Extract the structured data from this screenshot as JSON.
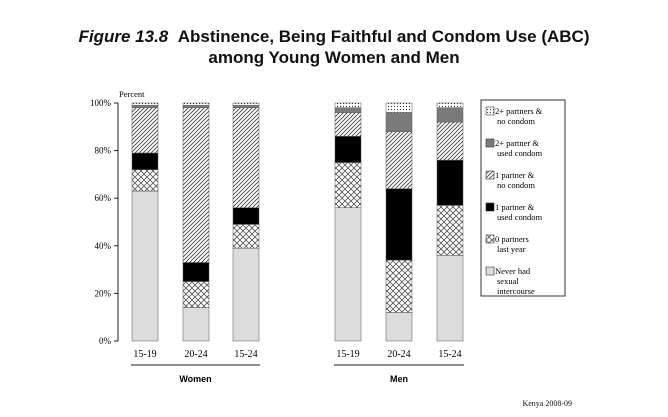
{
  "figure": {
    "label": "Figure 13.8",
    "title_line1": "Abstinence, Being Faithful and Condom Use (ABC)",
    "title_line2": "among Young Women and Men"
  },
  "source": "Kenya 2008-09",
  "chart_data": {
    "type": "bar",
    "stacked": true,
    "ylabel": "Percent",
    "ylim": [
      0,
      100
    ],
    "yticks": [
      "0%",
      "20%",
      "40%",
      "60%",
      "80%",
      "100%"
    ],
    "groups": [
      {
        "name": "Women",
        "categories": [
          "15-19",
          "20-24",
          "15-24"
        ]
      },
      {
        "name": "Men",
        "categories": [
          "15-19",
          "20-24",
          "15-24"
        ]
      }
    ],
    "categories": [
      "15-19",
      "20-24",
      "15-24",
      "15-19",
      "20-24",
      "15-24"
    ],
    "series": [
      {
        "name": "Never had sexual intercourse",
        "pattern": "solid-light",
        "color": "#dcdcdc",
        "values": [
          63,
          14,
          39,
          56,
          12,
          36
        ]
      },
      {
        "name": "0 partners last year",
        "pattern": "crosshatch",
        "color": "#ffffff",
        "values": [
          9,
          11,
          10,
          19,
          22,
          21
        ]
      },
      {
        "name": "1 partner & used condom",
        "pattern": "solid-black",
        "color": "#000000",
        "values": [
          7,
          8,
          7,
          11,
          30,
          19
        ]
      },
      {
        "name": "1 partner & no condom",
        "pattern": "diagonal",
        "color": "#ffffff",
        "values": [
          19,
          65,
          42,
          10,
          24,
          16
        ]
      },
      {
        "name": "2+ partners & used condom",
        "pattern": "solid-dark",
        "color": "#7a7a7a",
        "values": [
          1,
          1,
          1,
          2,
          8,
          6
        ]
      },
      {
        "name": "2+ partners & no condom",
        "pattern": "dots",
        "color": "#ffffff",
        "values": [
          1,
          1,
          1,
          2,
          4,
          2
        ]
      }
    ],
    "legend": {
      "placement": "right",
      "entries": [
        {
          "series": 5,
          "lines": [
            "2+ partners &",
            "no condom"
          ]
        },
        {
          "series": 4,
          "lines": [
            "2+ partner &",
            "used condom"
          ]
        },
        {
          "series": 3,
          "lines": [
            "1 partner &",
            "no condom"
          ]
        },
        {
          "series": 2,
          "lines": [
            "1 partner &",
            "used condom"
          ]
        },
        {
          "series": 1,
          "lines": [
            "0 partners",
            "last year"
          ]
        },
        {
          "series": 0,
          "lines": [
            "Never had",
            "sexual",
            "intercourse"
          ]
        }
      ]
    },
    "grid": false
  }
}
